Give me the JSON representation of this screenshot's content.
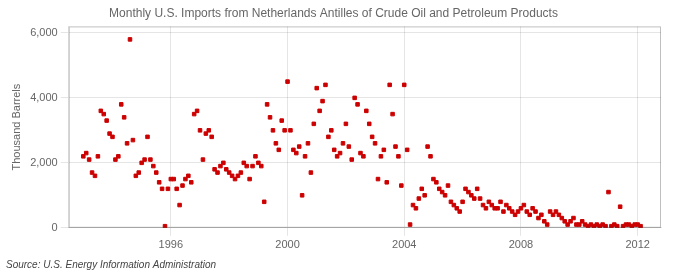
{
  "chart_data": {
    "type": "scatter",
    "title": "Monthly U.S. Imports from Netherlands Antilles of Crude Oil and Petroleum Products",
    "y_label": "Thousand Barrels",
    "annotations": [
      "Source: U.S. Energy Information Administration"
    ],
    "color": "#CC0000",
    "marker": "square",
    "grid": true,
    "xlim": [
      1992.5,
      2012.8
    ],
    "ylim": [
      0,
      6200
    ],
    "xticks": [
      1996,
      2000,
      2004,
      2008,
      2012
    ],
    "yticks": [
      0,
      {
        "value": 2000,
        "label": "2,000"
      },
      {
        "value": 4000,
        "label": "4,000"
      },
      {
        "value": 6000,
        "label": "6,000"
      }
    ],
    "x": [
      1993.0,
      1993.1,
      1993.2,
      1993.3,
      1993.4,
      1993.5,
      1993.6,
      1993.7,
      1993.8,
      1993.9,
      1994.0,
      1994.1,
      1994.2,
      1994.3,
      1994.4,
      1994.5,
      1994.6,
      1994.7,
      1994.8,
      1994.9,
      1995.0,
      1995.1,
      1995.2,
      1995.3,
      1995.4,
      1995.5,
      1995.6,
      1995.7,
      1995.8,
      1995.9,
      1996.0,
      1996.1,
      1996.2,
      1996.3,
      1996.4,
      1996.5,
      1996.6,
      1996.7,
      1996.8,
      1996.9,
      1997.0,
      1997.1,
      1997.2,
      1997.3,
      1997.4,
      1997.5,
      1997.6,
      1997.7,
      1997.8,
      1997.9,
      1998.0,
      1998.1,
      1998.2,
      1998.3,
      1998.4,
      1998.5,
      1998.6,
      1998.7,
      1998.8,
      1998.9,
      1999.0,
      1999.1,
      1999.2,
      1999.3,
      1999.4,
      1999.5,
      1999.6,
      1999.7,
      1999.8,
      1999.9,
      2000.0,
      2000.1,
      2000.2,
      2000.3,
      2000.4,
      2000.5,
      2000.6,
      2000.7,
      2000.8,
      2000.9,
      2001.0,
      2001.1,
      2001.2,
      2001.3,
      2001.4,
      2001.5,
      2001.6,
      2001.7,
      2001.8,
      2001.9,
      2002.0,
      2002.1,
      2002.2,
      2002.3,
      2002.4,
      2002.5,
      2002.6,
      2002.7,
      2002.8,
      2002.9,
      2003.0,
      2003.1,
      2003.2,
      2003.3,
      2003.4,
      2003.5,
      2003.6,
      2003.7,
      2003.8,
      2003.9,
      2004.0,
      2004.1,
      2004.2,
      2004.3,
      2004.4,
      2004.5,
      2004.6,
      2004.7,
      2004.8,
      2004.9,
      2005.0,
      2005.1,
      2005.2,
      2005.3,
      2005.4,
      2005.5,
      2005.6,
      2005.7,
      2005.8,
      2005.9,
      2006.0,
      2006.1,
      2006.2,
      2006.3,
      2006.4,
      2006.5,
      2006.6,
      2006.7,
      2006.8,
      2006.9,
      2007.0,
      2007.1,
      2007.2,
      2007.3,
      2007.4,
      2007.5,
      2007.6,
      2007.7,
      2007.8,
      2007.9,
      2008.0,
      2008.1,
      2008.2,
      2008.3,
      2008.4,
      2008.5,
      2008.6,
      2008.7,
      2008.8,
      2008.9,
      2009.0,
      2009.1,
      2009.2,
      2009.3,
      2009.4,
      2009.5,
      2009.6,
      2009.7,
      2009.8,
      2009.9,
      2010.0,
      2010.1,
      2010.2,
      2010.3,
      2010.4,
      2010.5,
      2010.6,
      2010.7,
      2010.8,
      2010.9,
      2011.0,
      2011.1,
      2011.2,
      2011.3,
      2011.4,
      2011.5,
      2011.6,
      2011.7,
      2011.8,
      2011.9,
      2012.0,
      2012.1
    ],
    "values": [
      2200,
      2300,
      2100,
      1700,
      1600,
      2200,
      3600,
      3500,
      3300,
      2900,
      2800,
      2100,
      2200,
      3800,
      3400,
      2600,
      5800,
      2700,
      1600,
      1700,
      2000,
      2100,
      2800,
      2100,
      1900,
      1700,
      1400,
      1200,
      50,
      1200,
      1500,
      1500,
      1200,
      700,
      1300,
      1500,
      1600,
      1400,
      3500,
      3600,
      3000,
      2100,
      2900,
      3000,
      2800,
      1800,
      1700,
      1900,
      2000,
      1800,
      1700,
      1600,
      1500,
      1600,
      1700,
      2000,
      1900,
      1500,
      1900,
      2200,
      2000,
      1900,
      800,
      3800,
      3400,
      3000,
      2600,
      2400,
      3300,
      3000,
      4500,
      3000,
      2400,
      2300,
      2500,
      1000,
      2200,
      2600,
      1700,
      3200,
      4300,
      3600,
      3900,
      4400,
      2800,
      3000,
      2400,
      2200,
      2300,
      2600,
      3200,
      2500,
      2100,
      4000,
      3800,
      2300,
      2200,
      3600,
      3200,
      2800,
      2600,
      1500,
      2200,
      2400,
      1400,
      4400,
      3500,
      2500,
      2200,
      1300,
      4400,
      2400,
      100,
      700,
      600,
      900,
      1200,
      1000,
      2500,
      2200,
      1500,
      1400,
      1200,
      1100,
      1000,
      1300,
      800,
      700,
      600,
      500,
      800,
      1200,
      1100,
      1000,
      900,
      1200,
      900,
      700,
      600,
      800,
      700,
      600,
      600,
      800,
      500,
      700,
      600,
      500,
      400,
      500,
      600,
      700,
      500,
      400,
      600,
      500,
      300,
      400,
      200,
      100,
      500,
      400,
      500,
      400,
      300,
      200,
      100,
      200,
      300,
      100,
      100,
      200,
      100,
      50,
      100,
      50,
      100,
      50,
      100,
      50,
      1100,
      50,
      100,
      50,
      650,
      50,
      100,
      100,
      50,
      100,
      100,
      50
    ]
  }
}
